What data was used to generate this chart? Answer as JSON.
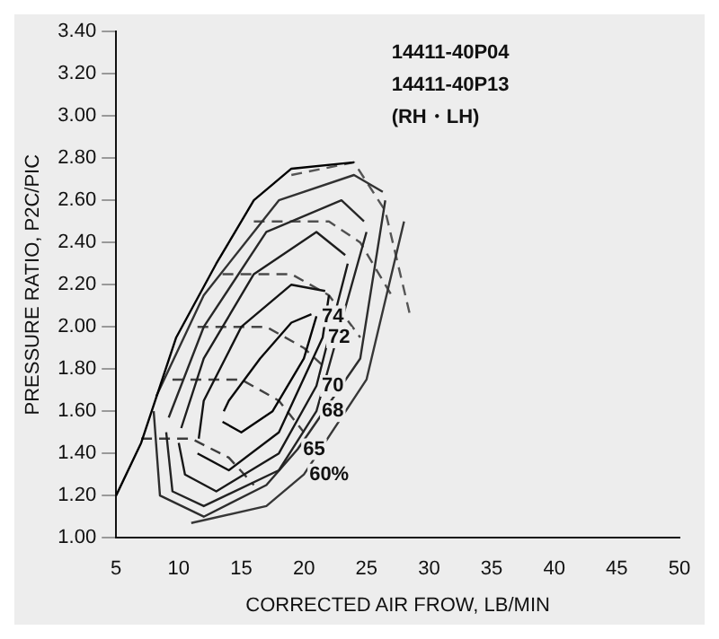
{
  "chart_data": {
    "type": "line",
    "xlabel": "CORRECTED AIR FROW, LB/MIN",
    "ylabel": "PRESSURE RATIO, P2C/PIC",
    "xlim": [
      5,
      50
    ],
    "xticks": [
      5,
      10,
      15,
      20,
      25,
      30,
      35,
      40,
      45,
      50
    ],
    "ylim": [
      1,
      3.4
    ],
    "yticks": [
      {
        "value": 1,
        "label": "1.00"
      },
      {
        "value": 1.2,
        "label": "1.20"
      },
      {
        "value": 1.4,
        "label": "1.40"
      },
      {
        "value": 1.6,
        "label": "1.60"
      },
      {
        "value": 1.8,
        "label": "1.80"
      },
      {
        "value": 2,
        "label": "2.00"
      },
      {
        "value": 2.2,
        "label": "2.20"
      },
      {
        "value": 2.4,
        "label": "2.40"
      },
      {
        "value": 2.6,
        "label": "2.60"
      },
      {
        "value": 2.8,
        "label": "2.80"
      },
      {
        "value": 3,
        "label": "3.00"
      },
      {
        "value": 3.2,
        "label": "3.20"
      },
      {
        "value": 3.4,
        "label": "3.40"
      }
    ],
    "grid": false,
    "legend": false,
    "marker": "none",
    "series": [
      {
        "color": "#000000",
        "x": [
          5,
          7,
          9.8,
          13,
          16,
          19,
          24
        ],
        "values": [
          1.2,
          1.45,
          1.95,
          2.3,
          2.6,
          2.75,
          2.78
        ]
      },
      {
        "color": "#050505",
        "x": [
          13.5,
          15,
          17.5,
          20,
          21
        ],
        "values": [
          1.55,
          1.5,
          1.6,
          1.85,
          2.05
        ]
      },
      {
        "color": "#0a0a0a",
        "x": [
          13.6,
          14,
          16.5,
          19,
          20.6
        ],
        "values": [
          1.6,
          1.65,
          1.85,
          2.02,
          2.06
        ]
      },
      {
        "color": "#0f0f0f",
        "x": [
          11.5,
          14,
          18,
          21.5,
          22
        ],
        "values": [
          1.4,
          1.32,
          1.5,
          1.95,
          2.15
        ]
      },
      {
        "color": "#141414",
        "x": [
          11.6,
          12,
          15,
          19,
          21.7
        ],
        "values": [
          1.47,
          1.65,
          2.0,
          2.2,
          2.17
        ]
      },
      {
        "color": "#191919",
        "x": [
          10,
          10.5,
          13,
          18,
          21,
          23.5
        ],
        "values": [
          1.45,
          1.3,
          1.22,
          1.4,
          1.72,
          2.3
        ]
      },
      {
        "color": "#1e1e1e",
        "x": [
          10.2,
          12,
          16,
          21,
          23.3
        ],
        "values": [
          1.52,
          1.85,
          2.25,
          2.45,
          2.34
        ]
      },
      {
        "color": "#232323",
        "x": [
          9,
          9.5,
          12,
          18,
          21,
          25
        ],
        "values": [
          1.5,
          1.22,
          1.15,
          1.32,
          1.6,
          2.45
        ]
      },
      {
        "color": "#282828",
        "x": [
          9.2,
          12,
          17,
          23,
          24.8
        ],
        "values": [
          1.57,
          2.0,
          2.45,
          2.6,
          2.5
        ]
      },
      {
        "color": "#2d2d2d",
        "x": [
          8,
          8.5,
          12,
          17,
          19.5,
          24.5,
          26.5
        ],
        "values": [
          1.6,
          1.2,
          1.1,
          1.25,
          1.42,
          1.85,
          2.6
        ]
      },
      {
        "color": "#323232",
        "x": [
          8.2,
          12,
          18,
          24,
          26.3
        ],
        "values": [
          1.67,
          2.15,
          2.6,
          2.72,
          2.64
        ]
      },
      {
        "color": "#373737",
        "x": [
          11,
          17,
          20,
          25,
          28
        ],
        "values": [
          1.07,
          1.15,
          1.3,
          1.75,
          2.5
        ]
      },
      {
        "color": "#3c3c3c",
        "line_style": "dashed",
        "x": [
          7,
          11,
          14,
          16
        ],
        "values": [
          1.47,
          1.47,
          1.38,
          1.25
        ]
      },
      {
        "color": "#414141",
        "line_style": "dashed",
        "x": [
          9.5,
          15,
          18,
          20
        ],
        "values": [
          1.75,
          1.75,
          1.65,
          1.5
        ]
      },
      {
        "color": "#464646",
        "line_style": "dashed",
        "x": [
          11.5,
          17,
          20,
          21.8
        ],
        "values": [
          2.0,
          2.0,
          1.9,
          1.8
        ]
      },
      {
        "color": "#4b4b4b",
        "line_style": "dashed",
        "x": [
          13.5,
          19,
          22,
          24.5
        ],
        "values": [
          2.25,
          2.25,
          2.15,
          1.95
        ]
      },
      {
        "color": "#505050",
        "line_style": "dashed",
        "x": [
          16,
          22,
          24.5,
          27
        ],
        "values": [
          2.5,
          2.5,
          2.4,
          2.15
        ]
      },
      {
        "color": "#555555",
        "line_style": "dashed",
        "x": [
          19,
          24,
          26.5,
          28.5
        ],
        "values": [
          2.72,
          2.78,
          2.55,
          2.05
        ]
      }
    ],
    "annotations": [
      "14411-40P04",
      "14411-40P13",
      "(RH・LH)",
      {
        "text": "74",
        "x": 21,
        "y": 2.05
      },
      {
        "text": "72",
        "x": 21.5,
        "y": 1.95
      },
      {
        "text": "70",
        "x": 21,
        "y": 1.72
      },
      {
        "text": "68",
        "x": 21,
        "y": 1.6
      },
      {
        "text": "65",
        "x": 19.5,
        "y": 1.42
      },
      {
        "text": "60%",
        "x": 20,
        "y": 1.3
      }
    ]
  }
}
